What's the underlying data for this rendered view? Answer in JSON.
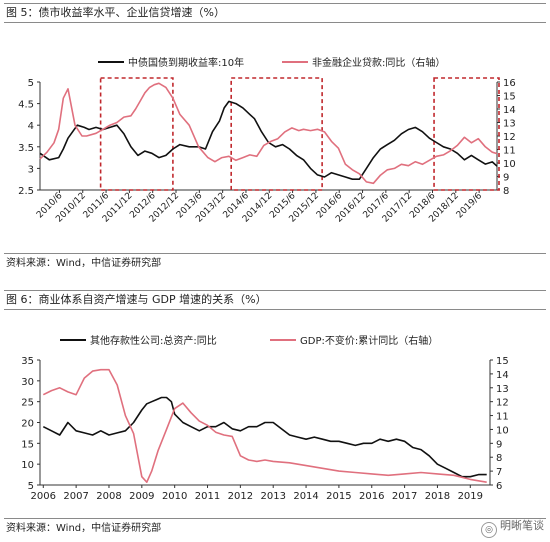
{
  "figures": [
    {
      "title": "图 5：债市收益率水平、企业信贷增速（%）",
      "source": "资料来源：Wind，中信证券研究部"
    },
    {
      "title": "图 6：商业体系自资产增速与 GDP 增速的关系（%）",
      "source": "资料来源：Wind，中信证券研究部"
    }
  ],
  "watermark": {
    "text": "明晰笔谈",
    "icon": "wechat-icon"
  },
  "chart_data": [
    {
      "type": "line",
      "title": "",
      "x_ticks": [
        "2010/6",
        "2010/12",
        "2011/6",
        "2011/12",
        "2012/6",
        "2012/12",
        "2013/6",
        "2013/12",
        "2014/6",
        "2014/12",
        "2015/6",
        "2015/12",
        "2016/6",
        "2016/12",
        "2017/6",
        "2017/12",
        "2018/6",
        "2018/12",
        "2019/6"
      ],
      "x_range": [
        2010.0,
        2019.8
      ],
      "y_left": {
        "min": 2.5,
        "max": 5,
        "ticks": [
          "2.5",
          "3",
          "3.5",
          "4",
          "4.5",
          "5"
        ]
      },
      "y_right": {
        "min": 8,
        "max": 16,
        "ticks": [
          "8",
          "9",
          "10",
          "11",
          "12",
          "13",
          "14",
          "15",
          "16"
        ]
      },
      "grid": false,
      "legend_position": "top",
      "series": [
        {
          "name": "中债国债到期收益率:10年",
          "axis": "left",
          "color": "#111111",
          "x": [
            2010.0,
            2010.2,
            2010.4,
            2010.5,
            2010.6,
            2010.8,
            2010.95,
            2011.05,
            2011.2,
            2011.35,
            2011.5,
            2011.65,
            2011.8,
            2011.95,
            2012.1,
            2012.25,
            2012.4,
            2012.55,
            2012.7,
            2012.85,
            2013.0,
            2013.2,
            2013.4,
            2013.55,
            2013.7,
            2013.85,
            2013.95,
            2014.05,
            2014.2,
            2014.35,
            2014.5,
            2014.6,
            2014.75,
            2014.9,
            2015.05,
            2015.2,
            2015.35,
            2015.5,
            2015.65,
            2015.8,
            2015.95,
            2016.1,
            2016.25,
            2016.4,
            2016.55,
            2016.7,
            2016.85,
            2017.0,
            2017.15,
            2017.3,
            2017.45,
            2017.6,
            2017.75,
            2017.9,
            2018.05,
            2018.2,
            2018.35,
            2018.5,
            2018.65,
            2018.8,
            2018.95,
            2019.1,
            2019.25,
            2019.4,
            2019.55,
            2019.7,
            2019.8
          ],
          "y": [
            3.35,
            3.2,
            3.25,
            3.45,
            3.7,
            4.0,
            3.95,
            3.9,
            3.95,
            3.9,
            3.95,
            4.0,
            3.8,
            3.5,
            3.3,
            3.4,
            3.35,
            3.25,
            3.3,
            3.45,
            3.55,
            3.5,
            3.5,
            3.45,
            3.85,
            4.1,
            4.4,
            4.55,
            4.5,
            4.4,
            4.25,
            4.15,
            3.85,
            3.6,
            3.5,
            3.55,
            3.45,
            3.3,
            3.2,
            3.0,
            2.85,
            2.8,
            2.9,
            2.85,
            2.8,
            2.75,
            2.75,
            3.0,
            3.25,
            3.45,
            3.55,
            3.65,
            3.8,
            3.9,
            3.95,
            3.85,
            3.7,
            3.6,
            3.5,
            3.45,
            3.35,
            3.2,
            3.3,
            3.2,
            3.1,
            3.15,
            3.05
          ]
        },
        {
          "name": "非金融企业贷款:同比（右轴）",
          "axis": "right",
          "color": "#e0707e",
          "x": [
            2010.0,
            2010.15,
            2010.3,
            2010.4,
            2010.5,
            2010.6,
            2010.75,
            2010.9,
            2011.0,
            2011.2,
            2011.35,
            2011.5,
            2011.65,
            2011.8,
            2011.95,
            2012.05,
            2012.15,
            2012.25,
            2012.35,
            2012.45,
            2012.55,
            2012.7,
            2012.85,
            2013.0,
            2013.2,
            2013.4,
            2013.6,
            2013.75,
            2013.9,
            2014.05,
            2014.2,
            2014.35,
            2014.5,
            2014.65,
            2014.8,
            2014.95,
            2015.1,
            2015.25,
            2015.4,
            2015.55,
            2015.65,
            2015.8,
            2015.95,
            2016.1,
            2016.25,
            2016.4,
            2016.55,
            2016.7,
            2016.85,
            2017.0,
            2017.15,
            2017.3,
            2017.45,
            2017.6,
            2017.75,
            2017.9,
            2018.05,
            2018.2,
            2018.35,
            2018.5,
            2018.65,
            2018.8,
            2018.95,
            2019.1,
            2019.25,
            2019.4,
            2019.55,
            2019.7,
            2019.8
          ],
          "y": [
            10.3,
            10.8,
            11.5,
            12.5,
            14.8,
            15.5,
            12.8,
            12.0,
            12.0,
            12.2,
            12.5,
            12.8,
            13.0,
            13.4,
            13.5,
            14.0,
            14.6,
            15.2,
            15.6,
            15.8,
            15.9,
            15.6,
            14.8,
            13.6,
            12.8,
            11.2,
            10.4,
            10.1,
            10.4,
            10.5,
            10.2,
            10.4,
            10.6,
            10.5,
            11.3,
            11.6,
            11.8,
            12.3,
            12.6,
            12.4,
            12.5,
            12.4,
            12.5,
            12.3,
            11.6,
            11.1,
            9.9,
            9.5,
            9.2,
            8.6,
            8.5,
            9.1,
            9.5,
            9.6,
            9.9,
            9.8,
            10.1,
            9.9,
            10.2,
            10.5,
            10.6,
            10.9,
            11.3,
            11.9,
            11.5,
            11.8,
            11.2,
            10.8,
            10.7
          ]
        }
      ]
    },
    {
      "type": "line",
      "title": "",
      "x_ticks": [
        "2006",
        "2007",
        "2008",
        "2009",
        "2010",
        "2011",
        "2012",
        "2013",
        "2014",
        "2015",
        "2016",
        "2017",
        "2018",
        "2019"
      ],
      "x_range": [
        2005.9,
        2019.6
      ],
      "y_left": {
        "min": 5,
        "max": 35,
        "ticks": [
          "5",
          "10",
          "15",
          "20",
          "25",
          "30",
          "35"
        ]
      },
      "y_right": {
        "min": 6,
        "max": 15,
        "ticks": [
          "6",
          "7",
          "8",
          "9",
          "10",
          "11",
          "12",
          "13",
          "14",
          "15"
        ]
      },
      "grid": false,
      "legend_position": "top",
      "series": [
        {
          "name": "其他存款性公司:总资产:同比",
          "axis": "left",
          "color": "#111111",
          "x": [
            2006.0,
            2006.25,
            2006.5,
            2006.75,
            2007.0,
            2007.25,
            2007.5,
            2007.75,
            2008.0,
            2008.25,
            2008.5,
            2008.75,
            2009.0,
            2009.15,
            2009.3,
            2009.45,
            2009.6,
            2009.75,
            2009.9,
            2010.0,
            2010.25,
            2010.5,
            2010.75,
            2011.0,
            2011.25,
            2011.5,
            2011.75,
            2012.0,
            2012.25,
            2012.5,
            2012.75,
            2013.0,
            2013.25,
            2013.5,
            2013.75,
            2014.0,
            2014.25,
            2014.5,
            2014.75,
            2015.0,
            2015.25,
            2015.5,
            2015.75,
            2016.0,
            2016.25,
            2016.5,
            2016.75,
            2017.0,
            2017.25,
            2017.5,
            2017.75,
            2018.0,
            2018.25,
            2018.5,
            2018.75,
            2019.0,
            2019.25,
            2019.5
          ],
          "y": [
            19,
            18,
            17,
            20,
            18,
            17.5,
            17,
            18,
            17,
            17.5,
            18,
            20,
            23,
            24.5,
            25,
            25.5,
            26,
            26,
            25,
            22,
            20,
            19,
            18,
            19,
            19,
            20,
            18.5,
            18,
            19,
            19,
            20,
            20,
            18.5,
            17,
            16.5,
            16,
            16.5,
            16,
            15.5,
            15.5,
            15,
            14.5,
            15,
            15,
            16,
            15.5,
            16,
            15.5,
            14,
            13.5,
            12,
            10,
            9,
            8,
            7,
            7,
            7.5,
            7.5
          ]
        },
        {
          "name": "GDP:不变价:累计同比（右轴）",
          "axis": "right",
          "color": "#e0707e",
          "x": [
            2006.0,
            2006.25,
            2006.5,
            2006.75,
            2007.0,
            2007.25,
            2007.5,
            2007.75,
            2008.0,
            2008.25,
            2008.5,
            2008.75,
            2009.0,
            2009.15,
            2009.3,
            2009.5,
            2009.75,
            2010.0,
            2010.25,
            2010.5,
            2010.75,
            2011.0,
            2011.25,
            2011.5,
            2011.75,
            2012.0,
            2012.25,
            2012.5,
            2012.75,
            2013.0,
            2013.5,
            2014.0,
            2014.5,
            2015.0,
            2015.5,
            2016.0,
            2016.5,
            2017.0,
            2017.5,
            2018.0,
            2018.5,
            2019.0,
            2019.25,
            2019.5
          ],
          "y": [
            12.5,
            12.8,
            13.0,
            12.7,
            12.5,
            13.7,
            14.2,
            14.3,
            14.3,
            13.2,
            11.0,
            9.7,
            6.6,
            6.2,
            7.0,
            8.5,
            10.0,
            11.5,
            11.9,
            11.2,
            10.6,
            10.3,
            9.8,
            9.6,
            9.5,
            8.1,
            7.8,
            7.7,
            7.8,
            7.7,
            7.6,
            7.4,
            7.2,
            7.0,
            6.9,
            6.8,
            6.7,
            6.8,
            6.9,
            6.8,
            6.7,
            6.4,
            6.3,
            6.2
          ]
        }
      ]
    }
  ]
}
